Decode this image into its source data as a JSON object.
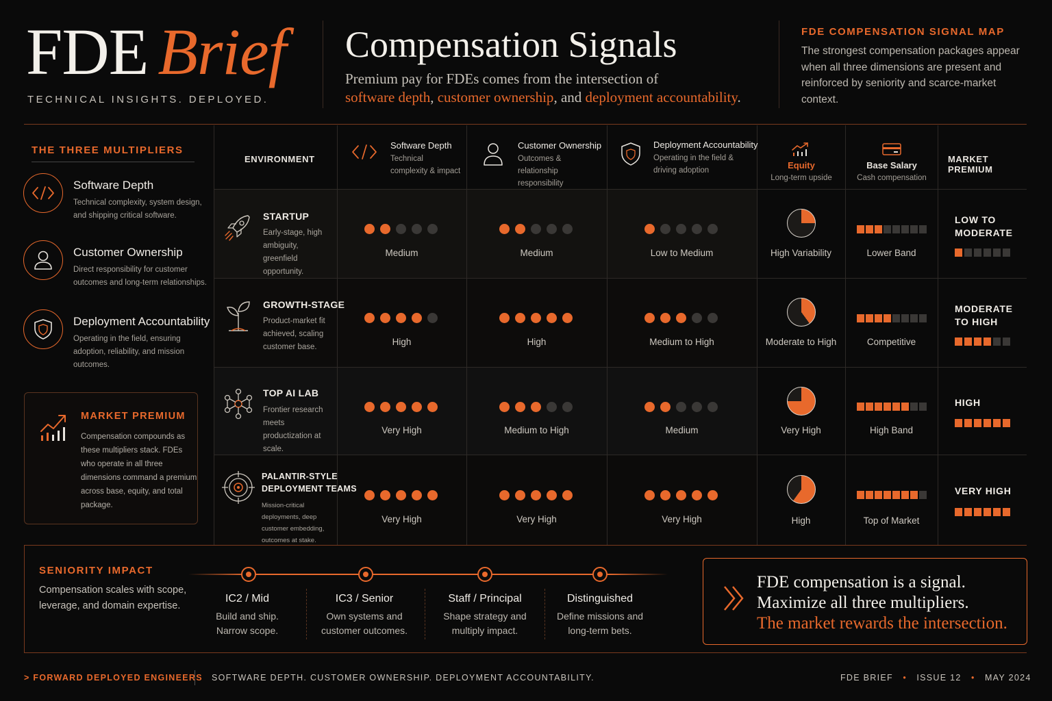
{
  "brand": {
    "name": "FDE",
    "name_accent": "Brief",
    "tagline": "TECHNICAL INSIGHTS. DEPLOYED."
  },
  "header": {
    "title": "Compensation Signals",
    "subtitle_1": "Premium pay for FDEs comes from the intersection of",
    "subtitle_hl1": "software depth",
    "subtitle_sep1": ", ",
    "subtitle_hl2": "customer ownership",
    "subtitle_sep2": ", and ",
    "subtitle_hl3": "deployment accountability",
    "subtitle_end": ".",
    "map_title": "FDE COMPENSATION SIGNAL MAP",
    "map_text": "The strongest compensation packages appear when all three dimensions are present and reinforced by seniority and scarce-market context."
  },
  "left_panel": {
    "title": "THE THREE MULTIPLIERS",
    "items": [
      {
        "title": "Software Depth",
        "desc": "Technical complexity, system design, and shipping critical software.",
        "icon": "code-icon"
      },
      {
        "title": "Customer Ownership",
        "desc": "Direct responsibility for customer outcomes and long-term relationships.",
        "icon": "user-icon"
      },
      {
        "title": "Deployment Accountability",
        "desc": "Operating in the field, ensuring adoption, reliability, and mission outcomes.",
        "icon": "shield-icon"
      }
    ],
    "market_premium": {
      "title": "MARKET PREMIUM",
      "text": "Compensation compounds as these multipliers stack. FDEs who operate in all three dimensions command a premium across base, equity, and total package.",
      "icon": "growth-chart-icon"
    }
  },
  "table": {
    "headers": {
      "environment": "ENVIRONMENT",
      "software": {
        "title": "Software Depth",
        "sub": "Technical complexity & impact"
      },
      "customer": {
        "title": "Customer Ownership",
        "sub": "Outcomes & relationship responsibility"
      },
      "deployment": {
        "title": "Deployment Accountability",
        "sub": "Operating in the field & driving adoption"
      },
      "equity": {
        "title": "Equity",
        "sub": "Long-term upside"
      },
      "base": {
        "title": "Base Salary",
        "sub": "Cash compensation"
      },
      "premium": "MARKET PREMIUM"
    },
    "rows": [
      {
        "name": "STARTUP",
        "desc": "Early-stage, high ambiguity, greenfield opportunity.",
        "icon": "rocket-icon",
        "software": {
          "dots": 2,
          "label": "Medium"
        },
        "customer": {
          "dots": 2,
          "label": "Medium"
        },
        "deployment": {
          "dots": 1,
          "label": "Low to Medium"
        },
        "equity": {
          "fraction": 0.25,
          "label": "High Variability"
        },
        "base": {
          "filled": 3,
          "total": 8,
          "label": "Lower Band"
        },
        "premium": {
          "line1": "LOW TO",
          "line2": "MODERATE",
          "filled": 1,
          "total": 6
        }
      },
      {
        "name": "GROWTH-STAGE",
        "desc": "Product-market fit achieved, scaling customer base.",
        "icon": "sprout-icon",
        "software": {
          "dots": 4,
          "label": "High"
        },
        "customer": {
          "dots": 5,
          "label": "High"
        },
        "deployment": {
          "dots": 3,
          "label": "Medium to High"
        },
        "equity": {
          "fraction": 0.4,
          "label": "Moderate to High"
        },
        "base": {
          "filled": 4,
          "total": 8,
          "label": "Competitive"
        },
        "premium": {
          "line1": "MODERATE",
          "line2": "TO HIGH",
          "filled": 4,
          "total": 6
        }
      },
      {
        "name": "TOP AI LAB",
        "desc": "Frontier research meets productization at scale.",
        "icon": "network-icon",
        "software": {
          "dots": 5,
          "label": "Very High"
        },
        "customer": {
          "dots": 3,
          "label": "Medium to High"
        },
        "deployment": {
          "dots": 2,
          "label": "Medium"
        },
        "equity": {
          "fraction": 0.75,
          "label": "Very High"
        },
        "base": {
          "filled": 6,
          "total": 8,
          "label": "High Band"
        },
        "premium": {
          "line1": "HIGH",
          "line2": "",
          "filled": 6,
          "total": 6
        }
      },
      {
        "name": "PALANTIR-STYLE",
        "name2": "DEPLOYMENT TEAMS",
        "desc": "Mission-critical deployments, deep customer embedding, outcomes at stake.",
        "icon": "target-icon",
        "software": {
          "dots": 5,
          "label": "Very High"
        },
        "customer": {
          "dots": 5,
          "label": "Very High"
        },
        "deployment": {
          "dots": 5,
          "label": "Very High"
        },
        "equity": {
          "fraction": 0.6,
          "label": "High"
        },
        "base": {
          "filled": 7,
          "total": 8,
          "label": "Top of Market"
        },
        "premium": {
          "line1": "VERY HIGH",
          "line2": "",
          "filled": 6,
          "total": 6
        }
      }
    ]
  },
  "seniority": {
    "title": "SENIORITY IMPACT",
    "text": "Compensation scales with scope, leverage, and domain expertise.",
    "levels": [
      {
        "title": "IC2 / Mid",
        "desc1": "Build and ship.",
        "desc2": "Narrow scope."
      },
      {
        "title": "IC3 / Senior",
        "desc1": "Own systems and",
        "desc2": "customer outcomes."
      },
      {
        "title": "Staff / Principal",
        "desc1": "Shape strategy and",
        "desc2": "multiply impact."
      },
      {
        "title": "Distinguished",
        "desc1": "Define missions and",
        "desc2": "long-term bets."
      }
    ]
  },
  "quote": {
    "line1": "FDE compensation is a signal.",
    "line2": "Maximize all three multipliers.",
    "line3": "The market rewards the intersection."
  },
  "footer": {
    "left_marker": ">",
    "left": "FORWARD DEPLOYED ENGINEERS",
    "middle": "SOFTWARE DEPTH. CUSTOMER OWNERSHIP. DEPLOYMENT ACCOUNTABILITY.",
    "publication": "FDE BRIEF",
    "issue": "ISSUE 12",
    "date": "MAY 2024",
    "separator": "•"
  },
  "colors": {
    "accent": "#e8692c",
    "background": "#0a0a0a",
    "inactive": "#3a3836"
  }
}
